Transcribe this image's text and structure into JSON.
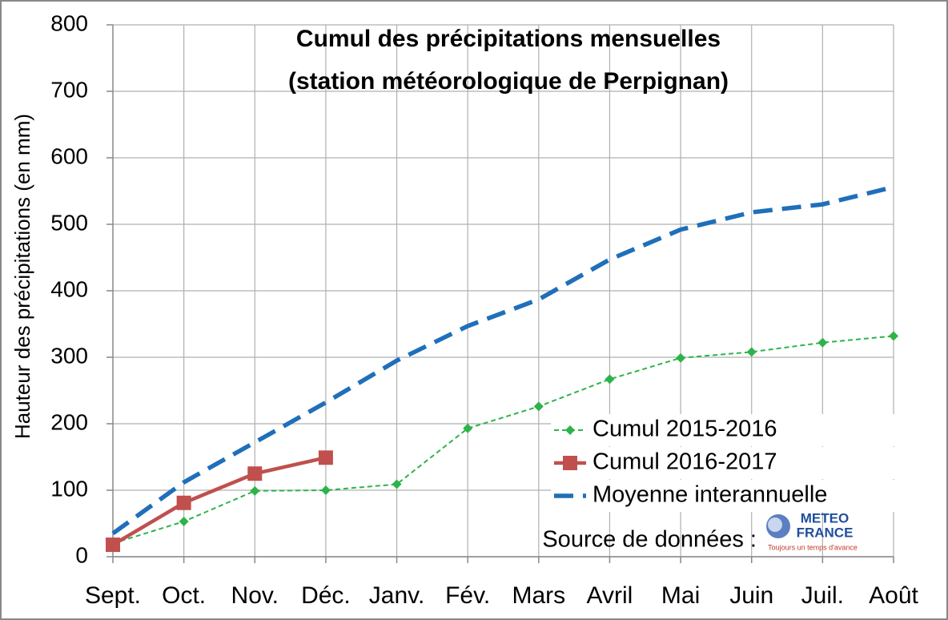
{
  "chart_data": {
    "type": "line",
    "title": [
      "Cumul des précipitations mensuelles",
      "(station météorologique de Perpignan)"
    ],
    "y_label": "Hauteur des précipitations (en mm)",
    "categories": [
      "Sept.",
      "Oct.",
      "Nov.",
      "Déc.",
      "Janv.",
      "Fév.",
      "Mars",
      "Avril",
      "Mai",
      "Juin",
      "Juil.",
      "Août"
    ],
    "series": [
      {
        "name": "Cumul 2015-2016",
        "color": "#2eb34a",
        "style": "dashed-thin",
        "marker": "diamond",
        "values": [
          20,
          53,
          99,
          100,
          109,
          193,
          226,
          267,
          299,
          308,
          322,
          332
        ]
      },
      {
        "name": "Cumul 2016-2017",
        "color": "#c0504d",
        "style": "solid",
        "marker": "square",
        "values": [
          18,
          81,
          125,
          149,
          null,
          null,
          null,
          null,
          null,
          null,
          null,
          null
        ]
      },
      {
        "name": "Moyenne interannuelle",
        "color": "#1f6fba",
        "style": "dashed-thick",
        "marker": "none",
        "values": [
          35,
          112,
          172,
          232,
          295,
          347,
          387,
          447,
          492,
          518,
          530,
          556
        ]
      }
    ],
    "ylim": [
      0,
      800
    ],
    "yticks": [
      0,
      100,
      200,
      300,
      400,
      500,
      600,
      700,
      800
    ],
    "grid": true,
    "legend": "lower right",
    "source": "Source de données :",
    "logo": {
      "name": [
        "METEO",
        "FRANCE"
      ],
      "tagline": "Toujours un temps d'avance"
    }
  }
}
